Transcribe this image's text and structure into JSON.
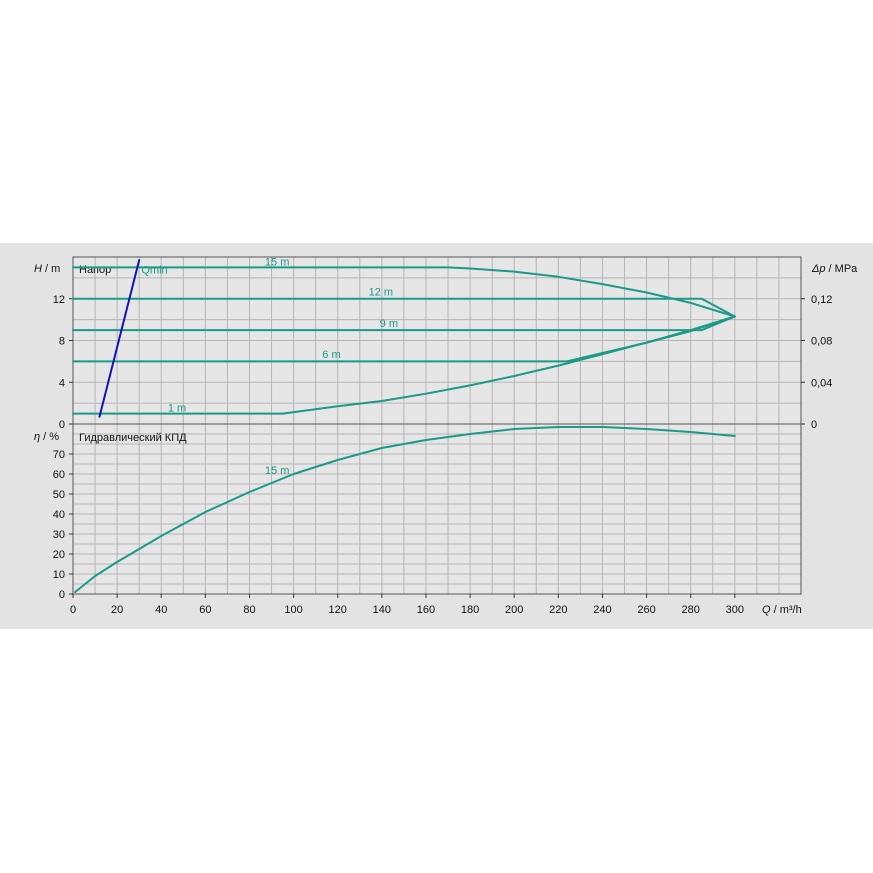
{
  "chart_data": [
    {
      "type": "line",
      "title": "Напор",
      "ylabel_symbol": "H",
      "ylabel_unit": "m",
      "y2label_symbol": "Δp",
      "y2label_unit": "MPa",
      "xlim": [
        0,
        330
      ],
      "ylim": [
        0,
        16
      ],
      "y2lim": [
        0,
        0.16
      ],
      "yticks": [
        0,
        4,
        8,
        12
      ],
      "yticklabels": [
        "0",
        "4",
        "8",
        "12"
      ],
      "y2ticks": [
        0,
        0.04,
        0.08,
        0.12
      ],
      "y2ticklabels": [
        "0",
        "0,04",
        "0,08",
        "0,12"
      ],
      "grid": true,
      "colors": {
        "curve": "#1a9a87",
        "qmin": "#1414b4"
      },
      "series": [
        {
          "name": "15 m",
          "label_at": [
            87,
            15.2
          ],
          "x": [
            0,
            100,
            170,
            180,
            200,
            220,
            240,
            260,
            280,
            300
          ],
          "y": [
            15,
            15,
            15,
            14.9,
            14.6,
            14.1,
            13.4,
            12.6,
            11.6,
            10.3
          ]
        },
        {
          "name": "12 m",
          "label_at": [
            134,
            12.3
          ],
          "x": [
            0,
            100,
            200,
            285,
            300
          ],
          "y": [
            12,
            12,
            12,
            12,
            10.3
          ]
        },
        {
          "name": "9 m",
          "label_at": [
            139,
            9.3
          ],
          "x": [
            0,
            100,
            200,
            285,
            300
          ],
          "y": [
            9,
            9,
            9,
            9,
            10.3
          ]
        },
        {
          "name": "6 m",
          "label_at": [
            113,
            6.3
          ],
          "x": [
            0,
            100,
            200,
            224,
            240,
            260,
            280,
            300
          ],
          "y": [
            6,
            6,
            6,
            6,
            6.8,
            7.8,
            8.9,
            10.3
          ]
        },
        {
          "name": "1 m",
          "label_at": [
            43,
            1.2
          ],
          "x": [
            0,
            95,
            120,
            140,
            160,
            180,
            200,
            220,
            240,
            260,
            280,
            300
          ],
          "y": [
            1,
            1,
            1.7,
            2.2,
            2.9,
            3.7,
            4.6,
            5.6,
            6.7,
            7.8,
            9.0,
            10.3
          ]
        },
        {
          "name": "Qmin",
          "label_at": [
            31,
            14.4
          ],
          "x": [
            12,
            30
          ],
          "y": [
            0.7,
            15.7
          ]
        }
      ]
    },
    {
      "type": "line",
      "title": "Гидравлический КПД",
      "ylabel_symbol": "η",
      "ylabel_unit": "%",
      "xlabel_symbol": "Q",
      "xlabel_unit": "m³/h",
      "xlim": [
        0,
        330
      ],
      "ylim": [
        0,
        85
      ],
      "xticks": [
        0,
        20,
        40,
        60,
        80,
        100,
        120,
        140,
        160,
        180,
        200,
        220,
        240,
        260,
        280,
        300
      ],
      "yticks": [
        0,
        10,
        20,
        30,
        40,
        50,
        60,
        70
      ],
      "grid": true,
      "colors": {
        "curve": "#1a9a87"
      },
      "series": [
        {
          "name": "15 m",
          "label_at": [
            87,
            60
          ],
          "x": [
            1,
            10,
            20,
            40,
            60,
            80,
            100,
            120,
            140,
            160,
            180,
            200,
            220,
            240,
            260,
            280,
            300
          ],
          "y": [
            1,
            9,
            16,
            29,
            41,
            51,
            60,
            67,
            73,
            77,
            80,
            82.5,
            83.5,
            83.5,
            82.5,
            81,
            79
          ]
        }
      ]
    }
  ]
}
